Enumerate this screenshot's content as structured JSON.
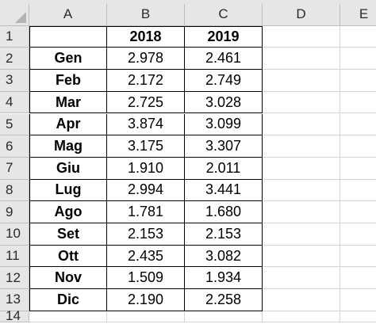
{
  "columns": [
    "A",
    "B",
    "C",
    "D",
    "E"
  ],
  "header_row": {
    "row_number": "1",
    "a": "",
    "b": "2018",
    "c": "2019"
  },
  "rows": [
    {
      "row_number": "2",
      "month": "Gen",
      "y2018": "2.978",
      "y2019": "2.461"
    },
    {
      "row_number": "3",
      "month": "Feb",
      "y2018": "2.172",
      "y2019": "2.749"
    },
    {
      "row_number": "4",
      "month": "Mar",
      "y2018": "2.725",
      "y2019": "3.028"
    },
    {
      "row_number": "5",
      "month": "Apr",
      "y2018": "3.874",
      "y2019": "3.099"
    },
    {
      "row_number": "6",
      "month": "Mag",
      "y2018": "3.175",
      "y2019": "3.307"
    },
    {
      "row_number": "7",
      "month": "Giu",
      "y2018": "1.910",
      "y2019": "2.011"
    },
    {
      "row_number": "8",
      "month": "Lug",
      "y2018": "2.994",
      "y2019": "3.441"
    },
    {
      "row_number": "9",
      "month": "Ago",
      "y2018": "1.781",
      "y2019": "1.680"
    },
    {
      "row_number": "10",
      "month": "Set",
      "y2018": "2.153",
      "y2019": "2.153"
    },
    {
      "row_number": "11",
      "month": "Ott",
      "y2018": "2.435",
      "y2019": "3.082"
    },
    {
      "row_number": "12",
      "month": "Nov",
      "y2018": "1.509",
      "y2019": "1.934"
    },
    {
      "row_number": "13",
      "month": "Dic",
      "y2018": "2.190",
      "y2019": "2.258"
    }
  ],
  "trailing_row_number": "14"
}
